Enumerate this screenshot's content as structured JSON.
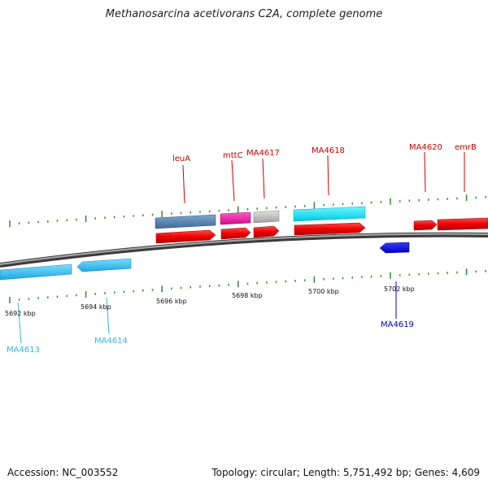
{
  "title": "Methanosarcina acetivorans C2A, complete genome",
  "footer": {
    "accession": "Accession: NC_003552",
    "stats": "Topology: circular; Length: 5,751,492 bp; Genes: 4,609"
  },
  "scale": {
    "ticks": [
      "5692 kbp",
      "5694 kbp",
      "5696 kbp",
      "5698 kbp",
      "5700 kbp",
      "5702 kbp"
    ]
  },
  "colors": {
    "forward_cds": "#e8000b",
    "reverse_cds": "#1e90ff",
    "backbone": "#6e6e6e",
    "tick": "#2f8a2f"
  },
  "genes": [
    {
      "name": "MA4613",
      "label_color": "#36b6e6"
    },
    {
      "name": "MA4614",
      "label_color": "#36b6e6"
    },
    {
      "name": "leuA",
      "label_color": "#cc0000"
    },
    {
      "name": "mttC",
      "label_color": "#cc0000"
    },
    {
      "name": "MA4617",
      "label_color": "#cc0000"
    },
    {
      "name": "MA4618",
      "label_color": "#cc0000"
    },
    {
      "name": "MA4619",
      "label_color": "#0000cc"
    },
    {
      "name": "MA4620",
      "label_color": "#cc0000"
    },
    {
      "name": "emrB",
      "label_color": "#cc0000"
    }
  ]
}
